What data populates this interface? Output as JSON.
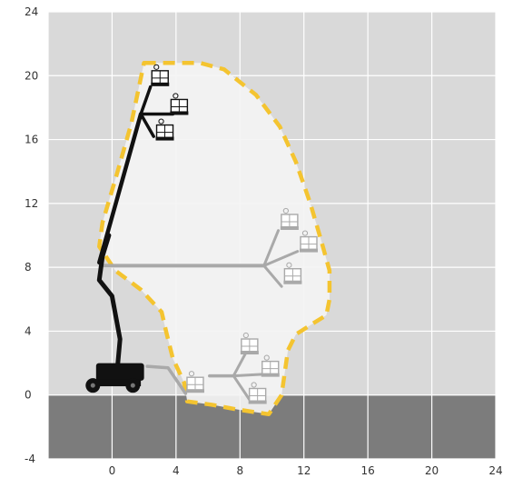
{
  "chart_data": {
    "type": "diagram",
    "x_ticks": [
      "0",
      "4",
      "8",
      "12",
      "16",
      "20",
      "24"
    ],
    "y_ticks": [
      "24",
      "20",
      "16",
      "12",
      "8",
      "4",
      "0",
      "-4"
    ],
    "x_range": [
      -4,
      24
    ],
    "y_range": [
      -4,
      24
    ],
    "grid": true,
    "ground_level": 0,
    "envelope_outline": [
      [
        2,
        20.8
      ],
      [
        5.5,
        20.8
      ],
      [
        7,
        20.4
      ],
      [
        9,
        18.8
      ],
      [
        10.5,
        16.8
      ],
      [
        11.5,
        14.6
      ],
      [
        12.4,
        12
      ],
      [
        13.1,
        9.6
      ],
      [
        13.6,
        7.8
      ],
      [
        13.6,
        6
      ],
      [
        13.4,
        5
      ],
      [
        12.6,
        4.5
      ],
      [
        11.5,
        3.8
      ],
      [
        11,
        2.8
      ],
      [
        10.8,
        1.4
      ],
      [
        10.6,
        0
      ],
      [
        9.8,
        -1.2
      ],
      [
        7.8,
        -0.9
      ],
      [
        6.2,
        -0.6
      ],
      [
        4.7,
        -0.4
      ],
      [
        4.5,
        0.8
      ],
      [
        3.8,
        2.3
      ],
      [
        3.4,
        3.9
      ],
      [
        3.1,
        5.2
      ],
      [
        1.8,
        6.6
      ],
      [
        0.2,
        7.8
      ],
      [
        -0.8,
        9.3
      ],
      [
        -0.6,
        10.8
      ],
      [
        0.2,
        13.5
      ],
      [
        1.2,
        17
      ],
      [
        2,
        20.8
      ]
    ],
    "colors": {
      "plot_background": "#d9d9d9",
      "ground": "#7c7c7c",
      "grid": "#ffffff",
      "envelope_fill": "#f4f4f4",
      "envelope_outline": "#f4c430",
      "machine": "#111111",
      "boom_faded": "#a9a9a9"
    }
  }
}
